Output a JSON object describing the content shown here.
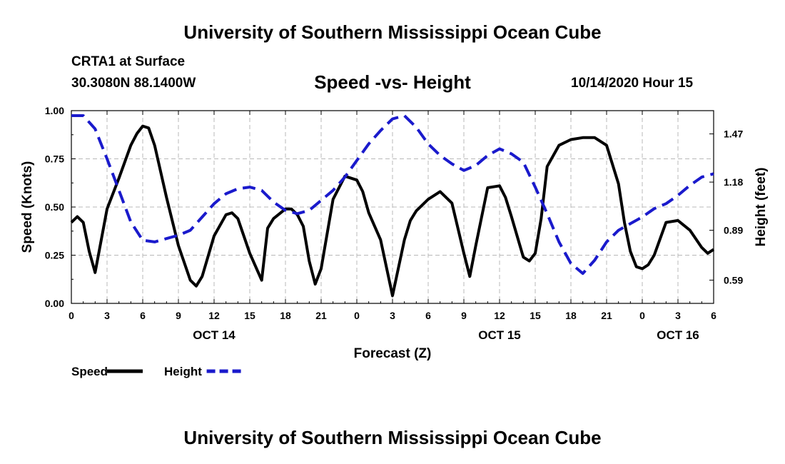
{
  "header": {
    "title": "University of Southern Mississippi Ocean Cube",
    "station": "CRTA1 at Surface",
    "coords": "30.3080N 88.1400W",
    "chart_title": "Speed -vs- Height",
    "date": "10/14/2020 Hour 15"
  },
  "footer": {
    "title": "University of Southern Mississippi Ocean Cube"
  },
  "colors": {
    "speed": "#000000",
    "height": "#1a1acc",
    "grid": "#b8b8b8"
  },
  "chart_data": {
    "type": "line",
    "title": "Speed -vs- Height",
    "xlabel": "Forecast (Z)",
    "ylabel": "Speed (Knots)",
    "y2label": "Height (feet)",
    "xlim": [
      0,
      54
    ],
    "ylim": [
      0,
      1.0
    ],
    "y2lim": [
      0.45,
      1.61
    ],
    "grid": true,
    "x_ticks": [
      0,
      3,
      6,
      9,
      12,
      15,
      18,
      21,
      24,
      27,
      30,
      33,
      36,
      39,
      42,
      45,
      48,
      51,
      54
    ],
    "x_tick_labels": [
      "0",
      "3",
      "6",
      "9",
      "12",
      "15",
      "18",
      "21",
      "0",
      "3",
      "6",
      "9",
      "12",
      "15",
      "18",
      "21",
      "0",
      "3",
      "6"
    ],
    "day_labels": [
      {
        "x": 12,
        "label": "OCT 14"
      },
      {
        "x": 36,
        "label": "OCT 15"
      },
      {
        "x": 51,
        "label": "OCT 16"
      }
    ],
    "y_ticks": [
      0.0,
      0.25,
      0.5,
      0.75,
      1.0
    ],
    "y_tick_labels": [
      "0.00",
      "0.25",
      "0.50",
      "0.75",
      "1.00"
    ],
    "y2_ticks": [
      0.59,
      0.89,
      1.18,
      1.47
    ],
    "y2_tick_labels": [
      "0.59",
      "0.89",
      "1.18",
      "1.47"
    ],
    "legend": [
      {
        "name": "Speed",
        "style": "solid"
      },
      {
        "name": "Height",
        "style": "dashed"
      }
    ],
    "series": [
      {
        "name": "Speed",
        "axis": "left",
        "x": [
          0,
          0.5,
          1,
          1.5,
          2,
          3,
          4,
          5,
          5.5,
          6,
          6.5,
          7,
          8,
          9,
          10,
          10.5,
          11,
          12,
          13,
          13.5,
          14,
          15,
          16,
          16.5,
          17,
          18,
          18.5,
          19,
          19.5,
          20,
          20.5,
          21,
          22,
          23,
          24,
          24.5,
          25,
          26,
          27,
          28,
          28.5,
          29,
          30,
          31,
          32,
          33,
          33.5,
          34,
          35,
          36,
          36.5,
          37,
          38,
          38.5,
          39,
          39.5,
          40,
          41,
          42,
          43,
          44,
          45,
          46,
          46.5,
          47,
          47.5,
          48,
          48.5,
          49,
          50,
          51,
          52,
          53,
          53.5,
          54
        ],
        "values": [
          0.42,
          0.45,
          0.42,
          0.27,
          0.16,
          0.49,
          0.65,
          0.82,
          0.88,
          0.92,
          0.91,
          0.82,
          0.55,
          0.3,
          0.12,
          0.09,
          0.14,
          0.35,
          0.46,
          0.47,
          0.44,
          0.26,
          0.12,
          0.39,
          0.44,
          0.49,
          0.49,
          0.46,
          0.4,
          0.22,
          0.1,
          0.18,
          0.54,
          0.66,
          0.64,
          0.58,
          0.47,
          0.33,
          0.04,
          0.33,
          0.43,
          0.48,
          0.54,
          0.58,
          0.52,
          0.26,
          0.14,
          0.3,
          0.6,
          0.61,
          0.55,
          0.45,
          0.24,
          0.22,
          0.26,
          0.44,
          0.71,
          0.82,
          0.85,
          0.86,
          0.86,
          0.82,
          0.62,
          0.42,
          0.27,
          0.19,
          0.18,
          0.2,
          0.25,
          0.42,
          0.43,
          0.38,
          0.29,
          0.26,
          0.28
        ]
      },
      {
        "name": "Height",
        "axis": "right",
        "x": [
          0,
          1,
          2,
          3,
          4,
          5,
          6,
          7,
          8,
          9,
          10,
          11,
          12,
          13,
          14,
          15,
          16,
          17,
          18,
          19,
          20,
          21,
          22,
          23,
          24,
          25,
          26,
          27,
          28,
          29,
          30,
          31,
          32,
          33,
          34,
          35,
          36,
          37,
          38,
          39,
          40,
          41,
          42,
          43,
          44,
          45,
          46,
          47,
          48,
          49,
          50,
          51,
          52,
          53,
          54
        ],
        "values": [
          1.58,
          1.58,
          1.5,
          1.32,
          1.13,
          0.94,
          0.83,
          0.82,
          0.84,
          0.86,
          0.89,
          0.97,
          1.05,
          1.11,
          1.14,
          1.15,
          1.13,
          1.06,
          1.01,
          0.99,
          1.01,
          1.07,
          1.13,
          1.21,
          1.31,
          1.41,
          1.49,
          1.56,
          1.58,
          1.51,
          1.41,
          1.34,
          1.29,
          1.25,
          1.28,
          1.34,
          1.38,
          1.35,
          1.3,
          1.15,
          0.99,
          0.82,
          0.69,
          0.63,
          0.71,
          0.82,
          0.89,
          0.93,
          0.97,
          1.02,
          1.05,
          1.1,
          1.16,
          1.21,
          1.23
        ]
      }
    ]
  }
}
